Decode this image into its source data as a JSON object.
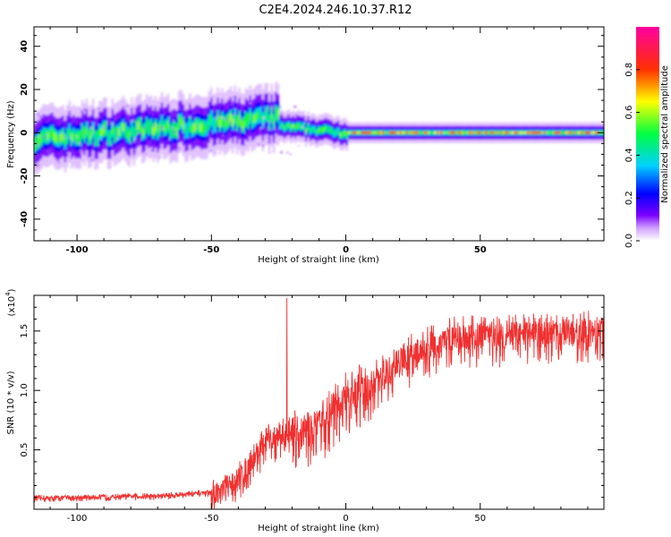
{
  "title": "C2E4.2024.246.10.37.R12",
  "chart_data": [
    {
      "type": "heatmap",
      "xlabel": "Height of straight line (km)",
      "ylabel": "Frequency (Hz)",
      "xlim": [
        -116,
        96
      ],
      "ylim": [
        -50,
        49
      ],
      "x_ticks": [
        -100,
        -50,
        0,
        50
      ],
      "y_ticks": [
        -40,
        -20,
        0,
        20,
        40
      ],
      "colorbar": {
        "label": "Normalized spectral amplitude",
        "range": [
          0,
          1
        ],
        "ticks": [
          "0.0",
          "0.2",
          "0.4",
          "0.6",
          "0.8"
        ],
        "colors": [
          "#ffffff",
          "#7a00ff",
          "#0000ff",
          "#00d0ff",
          "#00ff40",
          "#ffff00",
          "#ff3000",
          "#ff00a0"
        ]
      },
      "description_segments": [
        {
          "x_range": [
            -116,
            -25
          ],
          "center_freq_start": -3,
          "center_freq_end": 7,
          "spread": 6,
          "peak_amplitude": 0.5
        },
        {
          "x_range": [
            -25,
            0
          ],
          "center_freq_start": 3,
          "center_freq_end": 0,
          "spread": 3,
          "peak_amplitude": 0.6
        },
        {
          "x_range": [
            0,
            96
          ],
          "center_freq_start": 0,
          "center_freq_end": 0,
          "spread": 2,
          "peak_amplitude": 0.9
        }
      ]
    },
    {
      "type": "line",
      "xlabel": "Height of straight line (km)",
      "ylabel": "SNR (10 * v/v)",
      "y_multiplier": "(x10",
      "y_multiplier_exp": "4",
      "xlim": [
        -116,
        96
      ],
      "ylim": [
        0,
        1.8
      ],
      "x_ticks": [
        -100,
        -50,
        0,
        50
      ],
      "y_ticks": [
        "0.5",
        "1.0",
        "1.5"
      ],
      "series_color": "#f03030",
      "trend": [
        {
          "x": -116,
          "y": 0.1
        },
        {
          "x": -70,
          "y": 0.12
        },
        {
          "x": -50,
          "y": 0.15
        },
        {
          "x": -40,
          "y": 0.3
        },
        {
          "x": -30,
          "y": 0.6
        },
        {
          "x": -20,
          "y": 0.7
        },
        {
          "x": -10,
          "y": 0.75
        },
        {
          "x": 0,
          "y": 1.0
        },
        {
          "x": 10,
          "y": 1.1
        },
        {
          "x": 20,
          "y": 1.3
        },
        {
          "x": 30,
          "y": 1.4
        },
        {
          "x": 40,
          "y": 1.5
        },
        {
          "x": 50,
          "y": 1.5
        },
        {
          "x": 70,
          "y": 1.52
        },
        {
          "x": 96,
          "y": 1.55
        }
      ]
    }
  ]
}
